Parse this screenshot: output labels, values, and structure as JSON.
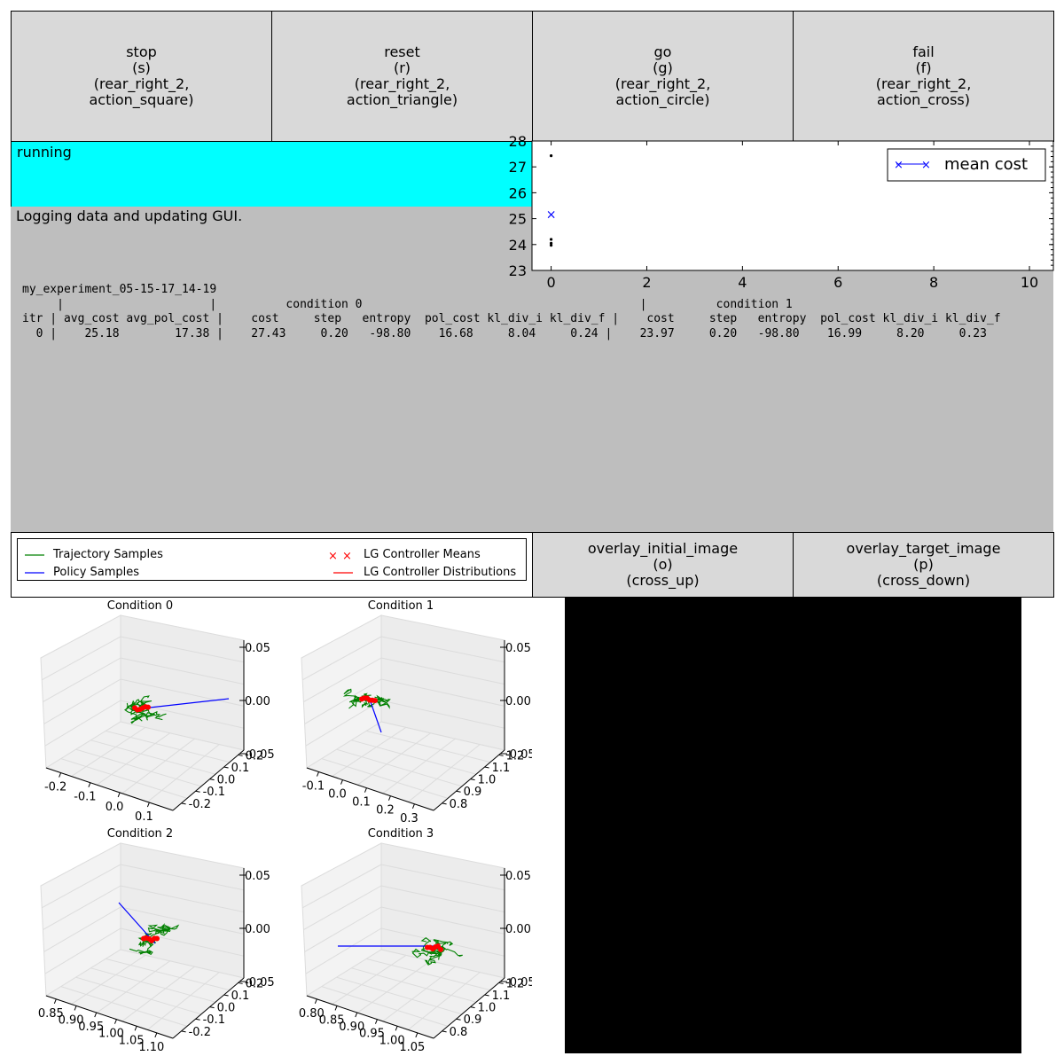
{
  "action_buttons": [
    {
      "label": "stop\n(s)\n(rear_right_2,\naction_square)"
    },
    {
      "label": "reset\n(r)\n(rear_right_2,\naction_triangle)"
    },
    {
      "label": "go\n(g)\n(rear_right_2,\naction_circle)"
    },
    {
      "label": "fail\n(f)\n(rear_right_2,\naction_cross)"
    }
  ],
  "status": {
    "text": "running",
    "color": "#00ffff"
  },
  "output": {
    "message": "Logging data and updating GUI.",
    "log_lines": [
      "my_experiment_05-15-17_14-19",
      "     |                     |          condition 0                                        |          condition 1",
      "itr | avg_cost avg_pol_cost |    cost     step   entropy  pol_cost kl_div_i kl_div_f |    cost     step   entropy  pol_cost kl_div_i kl_div_f",
      "  0 |    25.18        17.38 |    27.43     0.20   -98.80    16.68     8.04     0.24 |    23.97     0.20   -98.80    16.99     8.20     0.23"
    ]
  },
  "cost_plot": {
    "legend": "mean cost",
    "y_ticks": [
      "28",
      "27",
      "26",
      "25",
      "24",
      "23"
    ],
    "x_ticks": [
      "0",
      "2",
      "4",
      "6",
      "8",
      "10"
    ]
  },
  "chart_data": {
    "type": "scatter",
    "series": [
      {
        "name": "mean cost",
        "x": [
          0
        ],
        "y": [
          25.18
        ],
        "marker": "x",
        "color": "#0000ff"
      },
      {
        "x": [
          0,
          0,
          0,
          0
        ],
        "y": [
          27.43,
          24.2,
          24.05,
          23.97
        ],
        "marker": "dot",
        "color": "#000000"
      }
    ],
    "xlim": [
      -0.4,
      10.5
    ],
    "ylim": [
      23,
      28
    ]
  },
  "traj_legend": {
    "items": [
      {
        "label": "Trajectory Samples",
        "color": "#008000"
      },
      {
        "label": "Policy Samples",
        "color": "#0000ff"
      },
      {
        "label": "LG Controller Means",
        "color": "#ff0000"
      },
      {
        "label": "LG Controller Distributions",
        "color": "#ff0000"
      }
    ]
  },
  "overlay_buttons": [
    {
      "label": "overlay_initial_image\n(o)\n(cross_up)"
    },
    {
      "label": "overlay_target_image\n(p)\n(cross_down)"
    }
  ],
  "traj_plots": [
    {
      "title": "Condition 0",
      "x_ticks": [
        "-0.2",
        "-0.1",
        "0.0",
        "0.1"
      ],
      "y_ticks": [
        "0.2",
        "0.1",
        "0.0",
        "-0.1",
        "-0.2"
      ],
      "z_ticks": [
        "0.05",
        "0.00",
        "-0.05"
      ]
    },
    {
      "title": "Condition 1",
      "x_ticks": [
        "-0.1",
        "0.0",
        "0.1",
        "0.2",
        "0.3"
      ],
      "y_ticks": [
        "1.2",
        "1.1",
        "1.0",
        "0.9",
        "0.8"
      ],
      "z_ticks": [
        "0.05",
        "0.00",
        "-0.05"
      ]
    },
    {
      "title": "Condition 2",
      "x_ticks": [
        "0.85",
        "0.90",
        "0.95",
        "1.00",
        "1.05",
        "1.10"
      ],
      "y_ticks": [
        "0.2",
        "0.1",
        "0.0",
        "-0.1",
        "-0.2"
      ],
      "z_ticks": [
        "0.05",
        "0.00",
        "-0.05"
      ]
    },
    {
      "title": "Condition 3",
      "x_ticks": [
        "0.80",
        "0.85",
        "0.90",
        "0.95",
        "1.00",
        "1.05"
      ],
      "y_ticks": [
        "1.2",
        "1.1",
        "1.0",
        "0.9",
        "0.8"
      ],
      "z_ticks": [
        "0.05",
        "0.00",
        "-0.05"
      ]
    }
  ],
  "image_panel": {
    "color": "#000000"
  }
}
